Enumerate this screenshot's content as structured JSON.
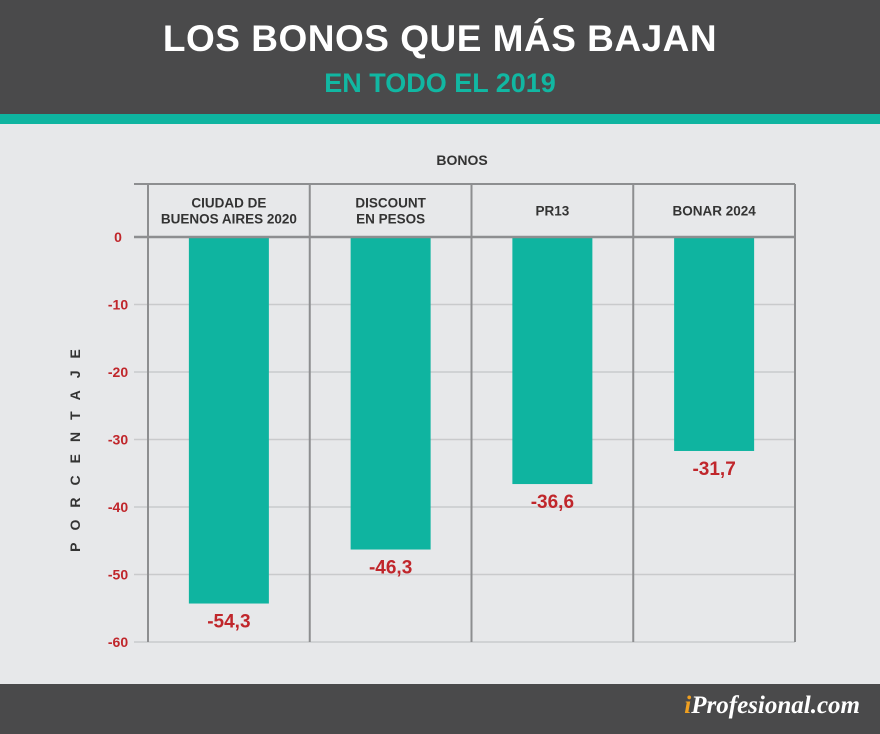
{
  "header": {
    "title": "LOS BONOS QUE MÁS BAJAN",
    "subtitle": "EN TODO EL 2019"
  },
  "footer": {
    "logo_i": "i",
    "logo_rest": "Profesional.com"
  },
  "colors": {
    "bar": "#0fb4a0",
    "header": "#4a4a4b",
    "accent": "#0fb4a0",
    "labels": "#c0262b",
    "background": "#e7e8ea"
  },
  "chart_data": {
    "type": "bar",
    "orientation": "vertical-downward",
    "xlabel": "BONOS",
    "ylabel": "PORCENTAJE",
    "categories": [
      [
        "CIUDAD DE",
        "BUENOS AIRES 2020"
      ],
      [
        "DISCOUNT",
        "EN PESOS"
      ],
      [
        "PR13"
      ],
      [
        "BONAR 2024"
      ]
    ],
    "values": [
      -54.3,
      -46.3,
      -36.6,
      -31.7
    ],
    "data_labels": [
      "-54,3",
      "-46,3",
      "-36,6",
      "-31,7"
    ],
    "ylim": [
      -60,
      0
    ],
    "yticks": [
      0,
      -10,
      -20,
      -30,
      -40,
      -50,
      -60
    ],
    "grid": true,
    "axis_position": "top"
  }
}
